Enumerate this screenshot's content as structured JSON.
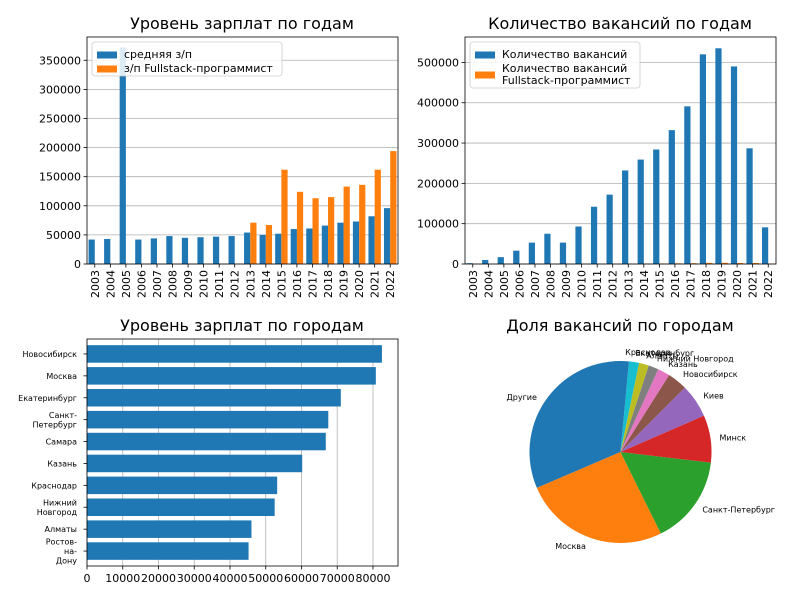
{
  "colors": {
    "blue": "#1f77b4",
    "orange": "#ff7f0e"
  },
  "chart_data": [
    {
      "type": "bar",
      "title": "Уровень зарплат по годам",
      "categories": [
        "2003",
        "2004",
        "2005",
        "2006",
        "2007",
        "2008",
        "2009",
        "2010",
        "2011",
        "2012",
        "2013",
        "2014",
        "2015",
        "2016",
        "2017",
        "2018",
        "2019",
        "2020",
        "2021",
        "2022"
      ],
      "series": [
        {
          "name": "средняя з/п",
          "values": [
            42000,
            43000,
            372000,
            42000,
            44000,
            48000,
            45000,
            46000,
            47000,
            48000,
            54000,
            50000,
            52000,
            60000,
            61000,
            66000,
            71000,
            73000,
            82000,
            96000
          ]
        },
        {
          "name": "з/п Fullstack-программист",
          "values": [
            0,
            0,
            0,
            0,
            0,
            0,
            0,
            0,
            0,
            0,
            71000,
            67000,
            162000,
            124000,
            113000,
            115000,
            133000,
            136000,
            162000,
            194000
          ]
        }
      ],
      "yticks": [
        0,
        50000,
        100000,
        150000,
        200000,
        250000,
        300000,
        350000
      ],
      "ylim": [
        0,
        390000
      ],
      "grid": "y",
      "legend": "upper-left"
    },
    {
      "type": "bar",
      "title": "Количество вакансий по годам",
      "categories": [
        "2003",
        "2004",
        "2005",
        "2006",
        "2007",
        "2008",
        "2009",
        "2010",
        "2011",
        "2012",
        "2013",
        "2014",
        "2015",
        "2016",
        "2017",
        "2018",
        "2019",
        "2020",
        "2021",
        "2022"
      ],
      "series": [
        {
          "name": "Количество вакансий",
          "values": [
            2000,
            10000,
            17000,
            33000,
            53000,
            75000,
            53000,
            93000,
            142000,
            172000,
            232000,
            259000,
            284000,
            332000,
            391000,
            520000,
            535000,
            490000,
            287000,
            91000
          ]
        },
        {
          "name": "Количество вакансий Fullstack-программист",
          "legend_lines": [
            "Количество вакансий",
            "Fullstack-программист"
          ],
          "values": [
            0,
            0,
            0,
            0,
            0,
            0,
            0,
            0,
            0,
            0,
            300,
            500,
            1200,
            1700,
            2000,
            2800,
            3000,
            2600,
            2500,
            1000
          ]
        }
      ],
      "yticks": [
        0,
        100000,
        200000,
        300000,
        400000,
        500000
      ],
      "ylim": [
        0,
        563000
      ],
      "grid": "y",
      "legend": "upper-left"
    },
    {
      "type": "bar",
      "orientation": "horizontal",
      "title": "Уровень зарплат по городам",
      "categories": [
        {
          "name": "Новосибирск",
          "lines": [
            "Новосибирск"
          ]
        },
        {
          "name": "Москва",
          "lines": [
            "Москва"
          ]
        },
        {
          "name": "Екатеринбург",
          "lines": [
            "Екатеринбург"
          ]
        },
        {
          "name": "Санкт-Петербург",
          "lines": [
            "Санкт-",
            "Петербург"
          ]
        },
        {
          "name": "Самара",
          "lines": [
            "Самара"
          ]
        },
        {
          "name": "Казань",
          "lines": [
            "Казань"
          ]
        },
        {
          "name": "Краснодар",
          "lines": [
            "Краснодар"
          ]
        },
        {
          "name": "Нижний Новгород",
          "lines": [
            "Нижний",
            "Новгород"
          ]
        },
        {
          "name": "Алматы",
          "lines": [
            "Алматы"
          ]
        },
        {
          "name": "Ростов-на-Дону",
          "lines": [
            "Ростов-",
            "на-",
            "Дону"
          ]
        }
      ],
      "values": [
        82500,
        80800,
        71000,
        67500,
        66800,
        60200,
        53200,
        52500,
        46000,
        45200
      ],
      "xticks": [
        0,
        10000,
        20000,
        30000,
        40000,
        50000,
        60000,
        70000,
        80000
      ],
      "xlim": [
        0,
        87000
      ],
      "grid": "x"
    },
    {
      "type": "pie",
      "title": "Доля вакансий по городам",
      "labels": [
        "Другие",
        "Москва",
        "Санкт-Петербург",
        "Минск",
        "Киев",
        "Новосибирск",
        "Казань",
        "Нижний Новгород",
        "Алматы",
        "Екатеринбург",
        "Краснодар"
      ],
      "values": [
        0.298,
        0.245,
        0.15,
        0.0795,
        0.0565,
        0.0335,
        0.0204,
        0.017,
        0.0165,
        0.017,
        0.014
      ],
      "colors": [
        "#1f77b4",
        "#ff7f0e",
        "#2ca02c",
        "#d62728",
        "#9467bd",
        "#8c564b",
        "#e377c2",
        "#7f7f7f",
        "#bcbd22",
        "#17becf",
        "#1f77b4"
      ]
    }
  ]
}
